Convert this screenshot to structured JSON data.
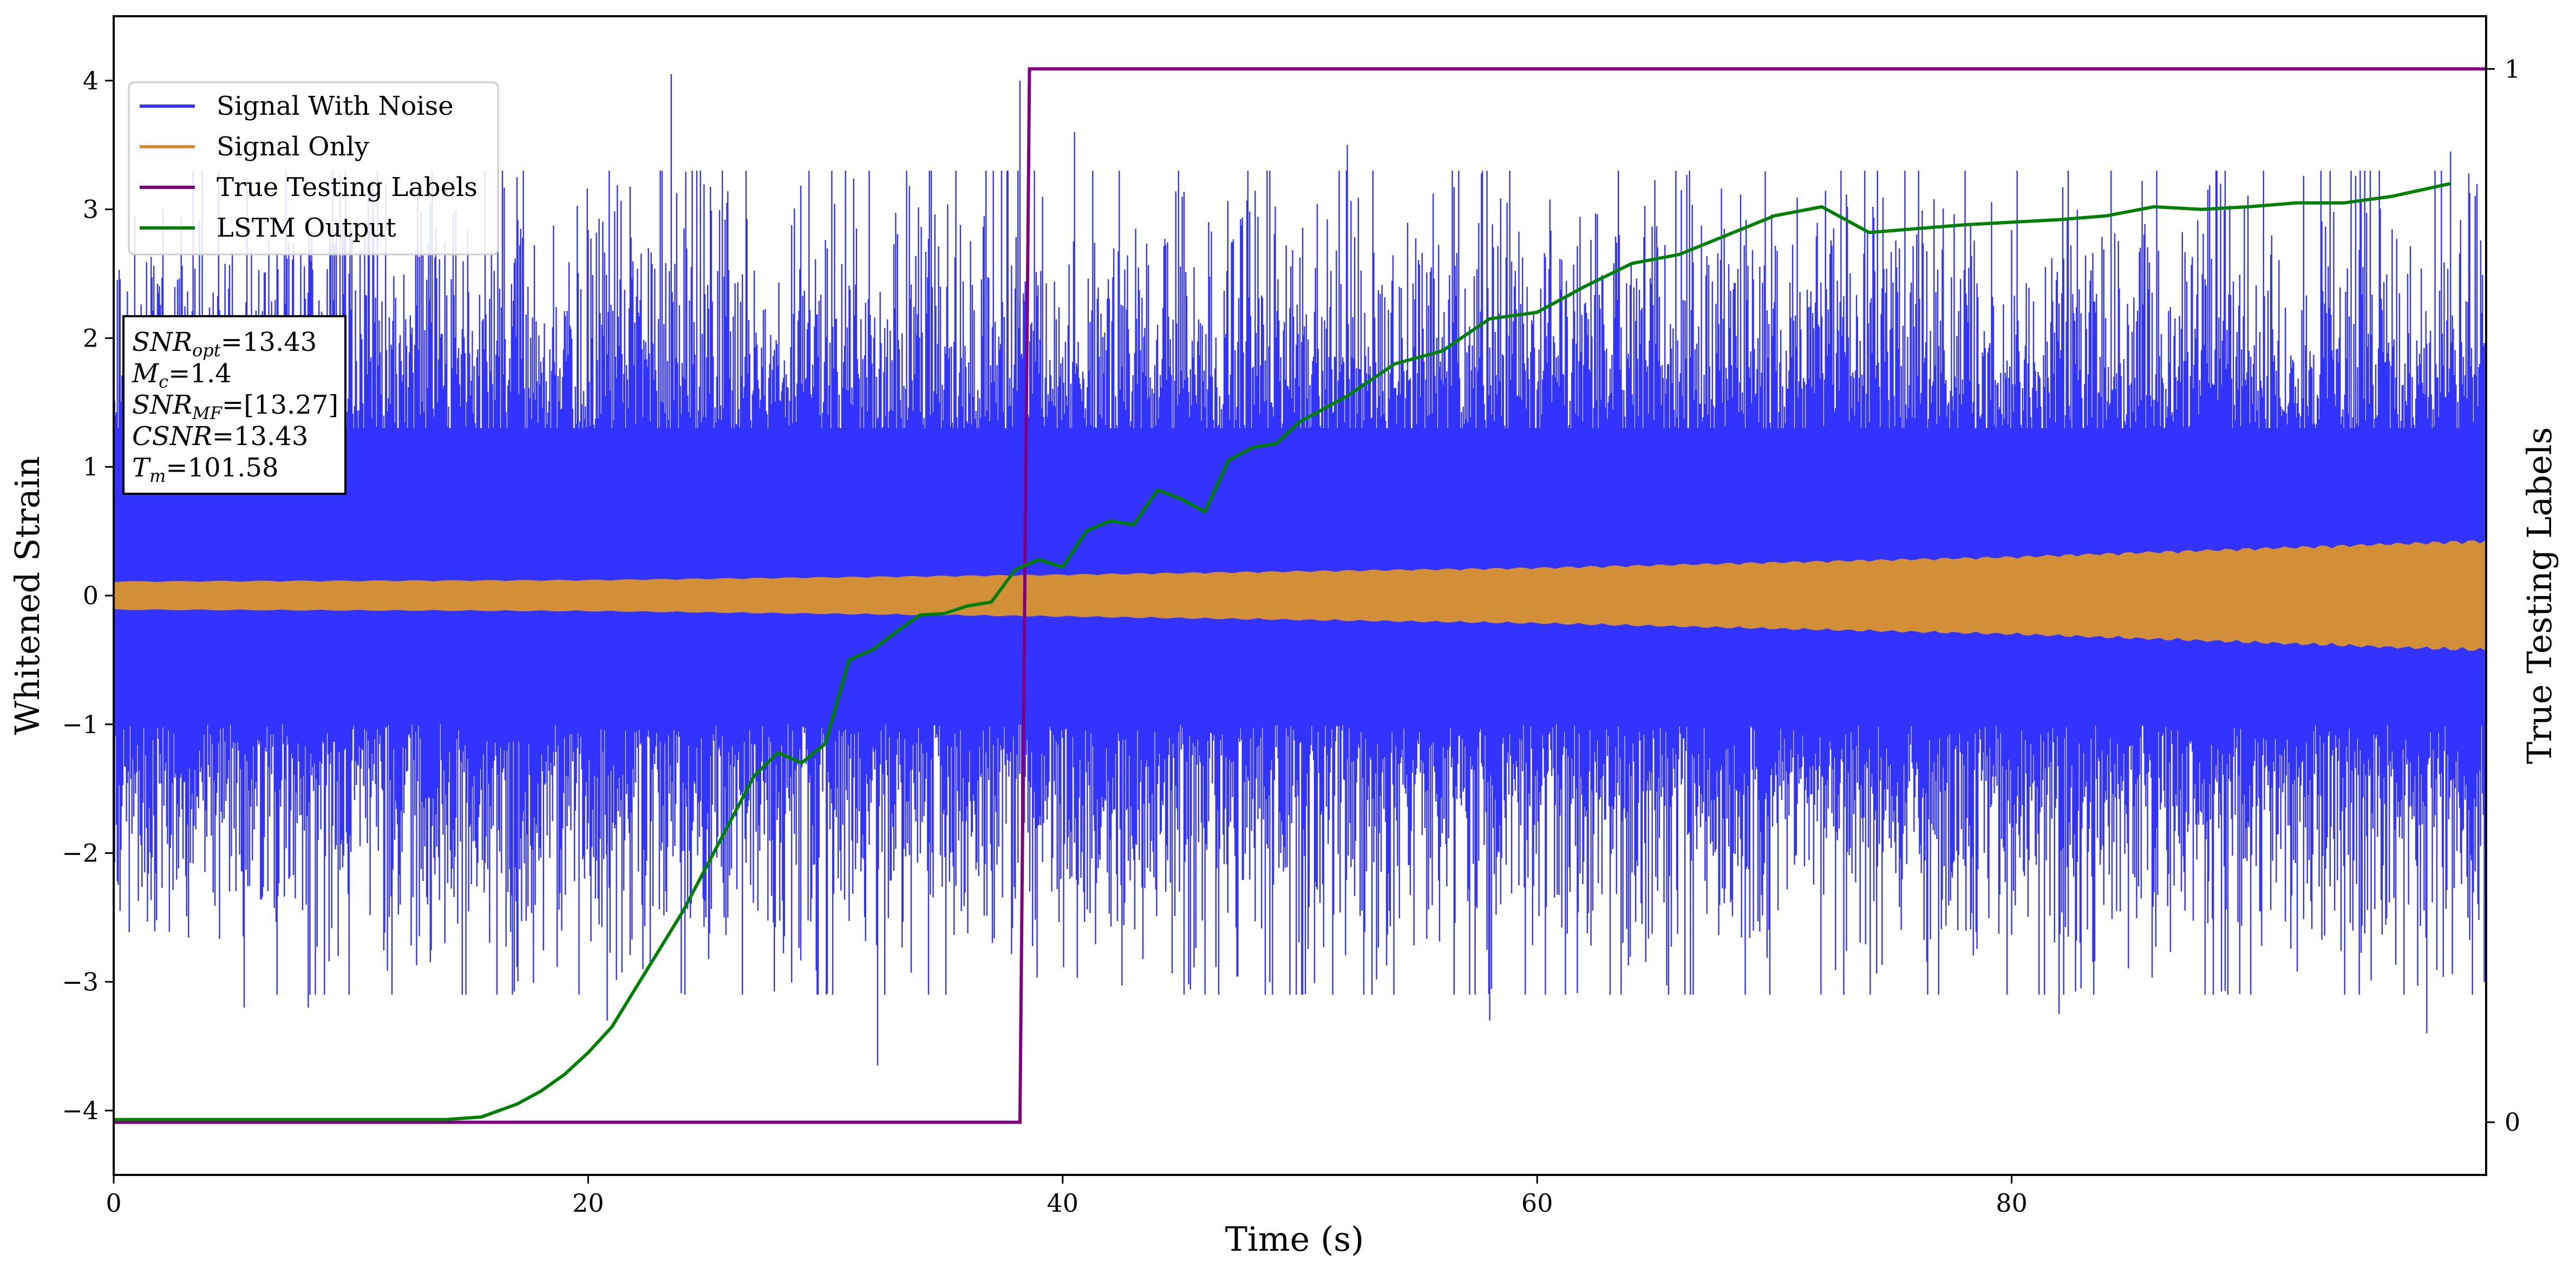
{
  "chart_data": {
    "type": "line",
    "title": "",
    "xlabel": "Time (s)",
    "ylabel": "Whitened Strain",
    "y2label": "True Testing Labels",
    "xlim": [
      0,
      100
    ],
    "ylim": [
      -4.5,
      4.5
    ],
    "y2lim": [
      -0.05,
      1.05
    ],
    "x_ticks": [
      0,
      20,
      40,
      60,
      80
    ],
    "y_ticks": [
      -4,
      -3,
      -2,
      -1,
      0,
      1,
      2,
      3,
      4
    ],
    "y_tick_labels": [
      "−4",
      "−3",
      "−2",
      "−1",
      "0",
      "1",
      "2",
      "3",
      "4"
    ],
    "y2_ticks": [
      0,
      1
    ],
    "grid": false,
    "legend_position": "top-left",
    "series": [
      {
        "name": "Signal With Noise",
        "axis": "left",
        "color": "#3333ff",
        "style": "dense noise band",
        "band_envelope": [
          [
            0,
            1.0
          ],
          [
            100,
            1.0
          ]
        ],
        "core_range": [
          -1.0,
          1.3
        ],
        "max_abs": 4.05,
        "peaks": [
          [
            23.5,
            4.05
          ],
          [
            38.2,
            4.0
          ],
          [
            40.5,
            3.6
          ],
          [
            52.0,
            3.5
          ],
          [
            98.5,
            3.45
          ],
          [
            32.2,
            -3.65
          ],
          [
            97.5,
            -3.4
          ],
          [
            20.8,
            -3.3
          ],
          [
            58.0,
            -3.3
          ],
          [
            82.0,
            -3.25
          ],
          [
            5.5,
            -3.2
          ],
          [
            8.2,
            -3.2
          ]
        ]
      },
      {
        "name": "Signal Only",
        "axis": "left",
        "color": "#d38e38",
        "style": "chirp band",
        "amplitude": [
          [
            0,
            0.1
          ],
          [
            20,
            0.11
          ],
          [
            40,
            0.15
          ],
          [
            60,
            0.2
          ],
          [
            80,
            0.28
          ],
          [
            100,
            0.4
          ]
        ]
      },
      {
        "name": "True Testing Labels",
        "axis": "right",
        "color": "#800080",
        "x": [
          0,
          38.2,
          38.6,
          100
        ],
        "y": [
          0,
          0,
          1,
          1
        ]
      },
      {
        "name": "LSTM Output",
        "axis": "left",
        "color": "#008000",
        "x": [
          0,
          14,
          15.5,
          17,
          18,
          19,
          20,
          21,
          22,
          23,
          24,
          25,
          26,
          27,
          28,
          29,
          30,
          31,
          32,
          33,
          34,
          35,
          36,
          37,
          38,
          39,
          40,
          41,
          42,
          43,
          44,
          45,
          46,
          47,
          48,
          49,
          50,
          52,
          54,
          56,
          58,
          60,
          62,
          64,
          66,
          68,
          70,
          72,
          74,
          76,
          78,
          80,
          82,
          84,
          86,
          88,
          90,
          92,
          94,
          96,
          98.5
        ],
        "y": [
          -4.07,
          -4.07,
          -4.05,
          -3.95,
          -3.85,
          -3.72,
          -3.55,
          -3.35,
          -3.05,
          -2.75,
          -2.45,
          -2.1,
          -1.75,
          -1.4,
          -1.22,
          -1.3,
          -1.15,
          -0.5,
          -0.42,
          -0.28,
          -0.15,
          -0.14,
          -0.08,
          -0.05,
          0.2,
          0.28,
          0.22,
          0.5,
          0.58,
          0.55,
          0.82,
          0.75,
          0.65,
          1.05,
          1.15,
          1.18,
          1.35,
          1.55,
          1.8,
          1.9,
          2.15,
          2.2,
          2.4,
          2.58,
          2.65,
          2.8,
          2.95,
          3.02,
          2.82,
          2.85,
          2.88,
          2.9,
          2.92,
          2.95,
          3.02,
          3.0,
          3.02,
          3.05,
          3.05,
          3.1,
          3.2
        ]
      }
    ]
  },
  "info_box": {
    "lines": [
      {
        "sym": "SNR",
        "sub": "opt",
        "rest": "=13.43"
      },
      {
        "sym": "M",
        "sub": "c",
        "rest": "=1.4"
      },
      {
        "sym": "SNR",
        "sub": "MF",
        "rest": "=[13.27]"
      },
      {
        "sym": "CSNR",
        "sub": "",
        "rest": "=13.43"
      },
      {
        "sym": "T",
        "sub": "m",
        "rest": "=101.58"
      }
    ]
  }
}
